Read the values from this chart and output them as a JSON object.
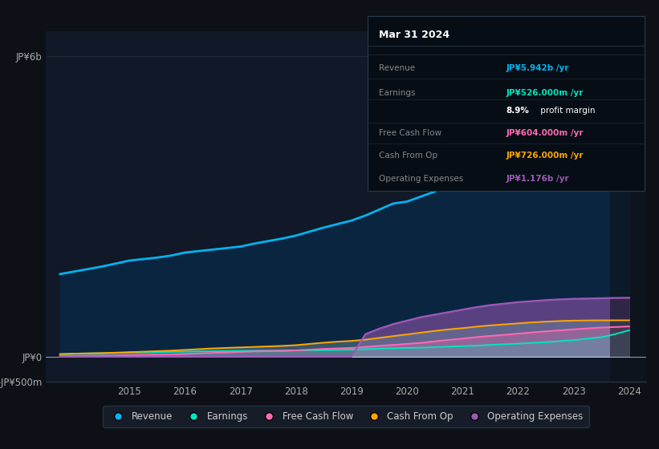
{
  "background_color": "#0d1117",
  "plot_bg_color": "#111827",
  "title": "Mar 31 2024",
  "grid_color": "#1e2d3d",
  "years": [
    2013.75,
    2014.0,
    2014.25,
    2014.5,
    2014.75,
    2015.0,
    2015.25,
    2015.5,
    2015.75,
    2016.0,
    2016.25,
    2016.5,
    2016.75,
    2017.0,
    2017.25,
    2017.5,
    2017.75,
    2018.0,
    2018.25,
    2018.5,
    2018.75,
    2019.0,
    2019.25,
    2019.5,
    2019.75,
    2020.0,
    2020.25,
    2020.5,
    2020.75,
    2021.0,
    2021.25,
    2021.5,
    2021.75,
    2022.0,
    2022.25,
    2022.5,
    2022.75,
    2023.0,
    2023.25,
    2023.5,
    2023.75,
    2024.0
  ],
  "revenue": [
    1650,
    1700,
    1750,
    1800,
    1860,
    1920,
    1950,
    1980,
    2020,
    2080,
    2110,
    2140,
    2170,
    2200,
    2260,
    2310,
    2360,
    2420,
    2500,
    2580,
    2650,
    2720,
    2820,
    2940,
    3060,
    3100,
    3200,
    3300,
    3450,
    3500,
    3650,
    3820,
    3950,
    4100,
    4280,
    4440,
    4590,
    4800,
    5000,
    5200,
    5500,
    5942
  ],
  "earnings": [
    50,
    60,
    65,
    70,
    75,
    80,
    85,
    90,
    95,
    100,
    105,
    108,
    112,
    115,
    118,
    120,
    122,
    125,
    128,
    130,
    135,
    140,
    150,
    160,
    170,
    175,
    180,
    190,
    200,
    210,
    220,
    235,
    248,
    260,
    275,
    290,
    310,
    330,
    360,
    390,
    450,
    526
  ],
  "free_cash_flow": [
    10,
    15,
    18,
    20,
    25,
    30,
    35,
    40,
    45,
    55,
    65,
    75,
    85,
    95,
    105,
    110,
    115,
    125,
    140,
    155,
    165,
    175,
    195,
    215,
    235,
    255,
    275,
    305,
    335,
    360,
    390,
    415,
    435,
    460,
    485,
    505,
    525,
    545,
    565,
    582,
    592,
    604
  ],
  "cash_from_op": [
    50,
    60,
    65,
    70,
    80,
    90,
    100,
    110,
    120,
    135,
    150,
    165,
    175,
    185,
    195,
    205,
    215,
    230,
    255,
    280,
    300,
    315,
    340,
    375,
    410,
    445,
    480,
    515,
    545,
    570,
    600,
    625,
    645,
    665,
    685,
    700,
    712,
    720,
    724,
    726,
    726,
    726
  ],
  "operating_expenses": [
    0,
    0,
    0,
    0,
    0,
    0,
    0,
    0,
    0,
    0,
    0,
    0,
    0,
    0,
    0,
    0,
    0,
    0,
    0,
    0,
    0,
    0,
    450,
    560,
    650,
    720,
    790,
    840,
    890,
    940,
    990,
    1030,
    1060,
    1090,
    1110,
    1130,
    1145,
    1155,
    1162,
    1168,
    1173,
    1176
  ],
  "revenue_color": "#00b4f0",
  "earnings_color": "#00e5c0",
  "free_cash_flow_color": "#ff69b4",
  "cash_from_op_color": "#ffa500",
  "operating_expenses_color": "#9b59b6",
  "ylim_min": -500,
  "ylim_max": 6500,
  "ytick_vals": [
    -500,
    0,
    6000
  ],
  "ytick_labels": [
    "-JP¥500m",
    "JP¥0",
    "JP¥6b"
  ],
  "xticks": [
    2015,
    2016,
    2017,
    2018,
    2019,
    2020,
    2021,
    2022,
    2023,
    2024
  ],
  "legend_labels": [
    "Revenue",
    "Earnings",
    "Free Cash Flow",
    "Cash From Op",
    "Operating Expenses"
  ],
  "legend_colors": [
    "#00b4f0",
    "#00e5c0",
    "#ff69b4",
    "#ffa500",
    "#9b59b6"
  ],
  "tooltip_title": "Mar 31 2024",
  "tooltip_rows": [
    {
      "label": "Revenue",
      "value": "JP¥5.942b /yr",
      "color": "#00b4f0"
    },
    {
      "label": "Earnings",
      "value": "JP¥526.000m /yr",
      "color": "#00e5c0"
    },
    {
      "label": "",
      "value": "8.9% profit margin",
      "color": "white",
      "bold_part": "8.9%"
    },
    {
      "label": "Free Cash Flow",
      "value": "JP¥604.000m /yr",
      "color": "#ff69b4"
    },
    {
      "label": "Cash From Op",
      "value": "JP¥726.000m /yr",
      "color": "#ffa500"
    },
    {
      "label": "Operating Expenses",
      "value": "JP¥1.176b /yr",
      "color": "#9b59b6"
    }
  ]
}
